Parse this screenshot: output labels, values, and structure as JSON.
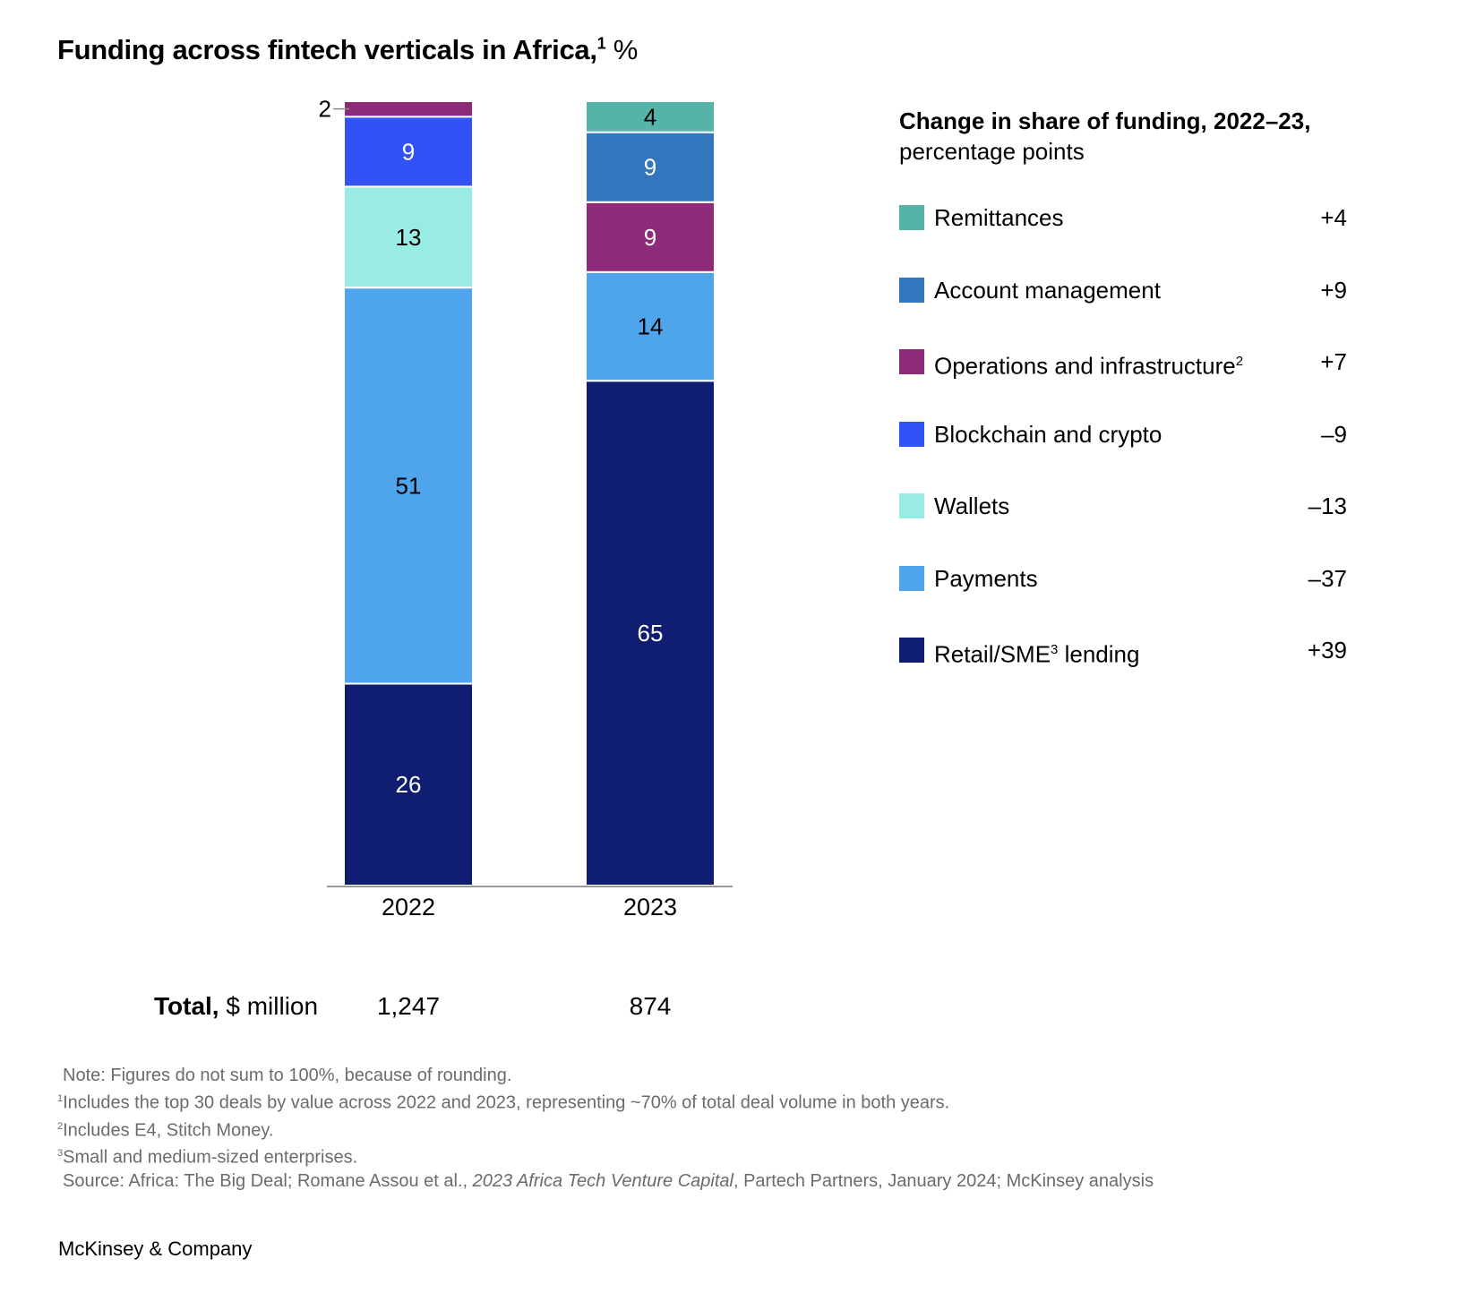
{
  "title": {
    "main": "Funding across fintech verticals in Africa,",
    "footnote_ref": "1",
    "unit": "%"
  },
  "legend": {
    "heading_bold": "Change in share of funding, 2022–23,",
    "heading_sub": "percentage points",
    "items": [
      {
        "label": "Remittances",
        "sup": "",
        "value": "+4",
        "color": "#55b4a8"
      },
      {
        "label": "Account management",
        "sup": "",
        "value": "+9",
        "color": "#3276be"
      },
      {
        "label": "Operations and infrastructure",
        "sup": "2",
        "value": "+7",
        "color": "#8e2b78"
      },
      {
        "label": "Blockchain and crypto",
        "sup": "",
        "value": "–9",
        "color": "#3153f5"
      },
      {
        "label": "Wallets",
        "sup": "",
        "value": "–13",
        "color": "#98ece4"
      },
      {
        "label": "Payments",
        "sup": "",
        "value": "–37",
        "color": "#4ea5eb"
      },
      {
        "label": "Retail/SME",
        "sup": "3",
        "label_suffix": " lending",
        "value": "+39",
        "color": "#0f1e72"
      }
    ]
  },
  "chart_data": {
    "type": "bar",
    "stacked": true,
    "title": "Funding across fintech verticals in Africa, %",
    "xlabel": "",
    "ylabel": "",
    "categories": [
      "2022",
      "2023"
    ],
    "series": [
      {
        "name": "Retail/SME lending",
        "values": [
          26,
          65
        ],
        "color": "#0f1e72",
        "label_color": "#ffffff"
      },
      {
        "name": "Payments",
        "values": [
          51,
          14
        ],
        "color": "#4ea5eb",
        "label_color": "#000000"
      },
      {
        "name": "Wallets",
        "values": [
          13,
          0
        ],
        "color": "#98ece4",
        "label_color": "#000000"
      },
      {
        "name": "Blockchain and crypto",
        "values": [
          9,
          0
        ],
        "color": "#3153f5",
        "label_color": "#ffffff"
      },
      {
        "name": "Operations and infrastructure",
        "values": [
          2,
          9
        ],
        "color": "#8e2b78",
        "label_color": "#ffffff"
      },
      {
        "name": "Account management",
        "values": [
          0,
          9
        ],
        "color": "#3276be",
        "label_color": "#ffffff"
      },
      {
        "name": "Remittances",
        "values": [
          0,
          4
        ],
        "color": "#55b4a8",
        "label_color": "#000000"
      }
    ],
    "outside_labels": [
      {
        "category": "2022",
        "series": "Operations and infrastructure",
        "text": "2"
      }
    ],
    "ylim": [
      0,
      101
    ],
    "grid": false,
    "legend": "right"
  },
  "totals": {
    "label_bold": "Total,",
    "label_rest": "$ million",
    "values": [
      "1,247",
      "874"
    ]
  },
  "notes": [
    {
      "sup": "",
      "text": "Note: Figures do not sum to 100%, because of rounding."
    },
    {
      "sup": "1",
      "text": "Includes the top 30 deals by value across 2022 and 2023, representing ~70% of total deal volume in both years."
    },
    {
      "sup": "2",
      "text": "Includes E4, Stitch Money."
    },
    {
      "sup": "3",
      "text": "Small and medium-sized enterprises."
    }
  ],
  "source": {
    "prefix": "Source: Africa: The Big Deal; Romane Assou et al., ",
    "italic": "2023 Africa Tech Venture Capital",
    "suffix": ", Partech Partners, January 2024; McKinsey analysis"
  },
  "brand": "McKinsey & Company"
}
